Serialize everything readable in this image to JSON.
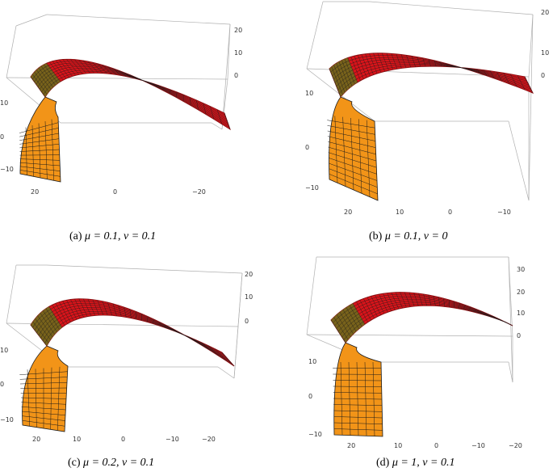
{
  "figure": {
    "panels": [
      {
        "id": "a",
        "caption_label": "(a)",
        "caption_math": "μ = 0.1, ν = 0.1",
        "z_ticks": [
          "20",
          "10",
          "0"
        ],
        "y_ticks": [
          "10",
          "0",
          "−10"
        ],
        "x_ticks": [
          "20",
          "0",
          "−20"
        ]
      },
      {
        "id": "b",
        "caption_label": "(b)",
        "caption_math": "μ = 0.1, ν = 0",
        "z_ticks": [
          "20",
          "10",
          "0"
        ],
        "y_ticks": [
          "10",
          "0",
          "−10"
        ],
        "x_ticks": [
          "20",
          "10",
          "0",
          "−10"
        ]
      },
      {
        "id": "c",
        "caption_label": "(c)",
        "caption_math": "μ = 0.2, ν = 0.1",
        "z_ticks": [
          "20",
          "10",
          "0"
        ],
        "y_ticks": [
          "10",
          "0",
          "−10"
        ],
        "x_ticks": [
          "20",
          "10",
          "0",
          "−10",
          "−20"
        ]
      },
      {
        "id": "d",
        "caption_label": "(d)",
        "caption_math": "μ = 1, ν = 0.1",
        "z_ticks": [
          "30",
          "20",
          "10",
          "0"
        ],
        "y_ticks": [
          "10",
          "0",
          "−10"
        ],
        "x_ticks": [
          "20",
          "10",
          "0",
          "−10",
          "−20"
        ]
      }
    ],
    "colors": {
      "surface_red": "#d8141a",
      "surface_dark_red": "#8c0f12",
      "surface_olive": "#6e6a1c",
      "surface_orange": "#f29418",
      "mesh": "#1a1a1a",
      "box": "#b0b0b0"
    }
  }
}
